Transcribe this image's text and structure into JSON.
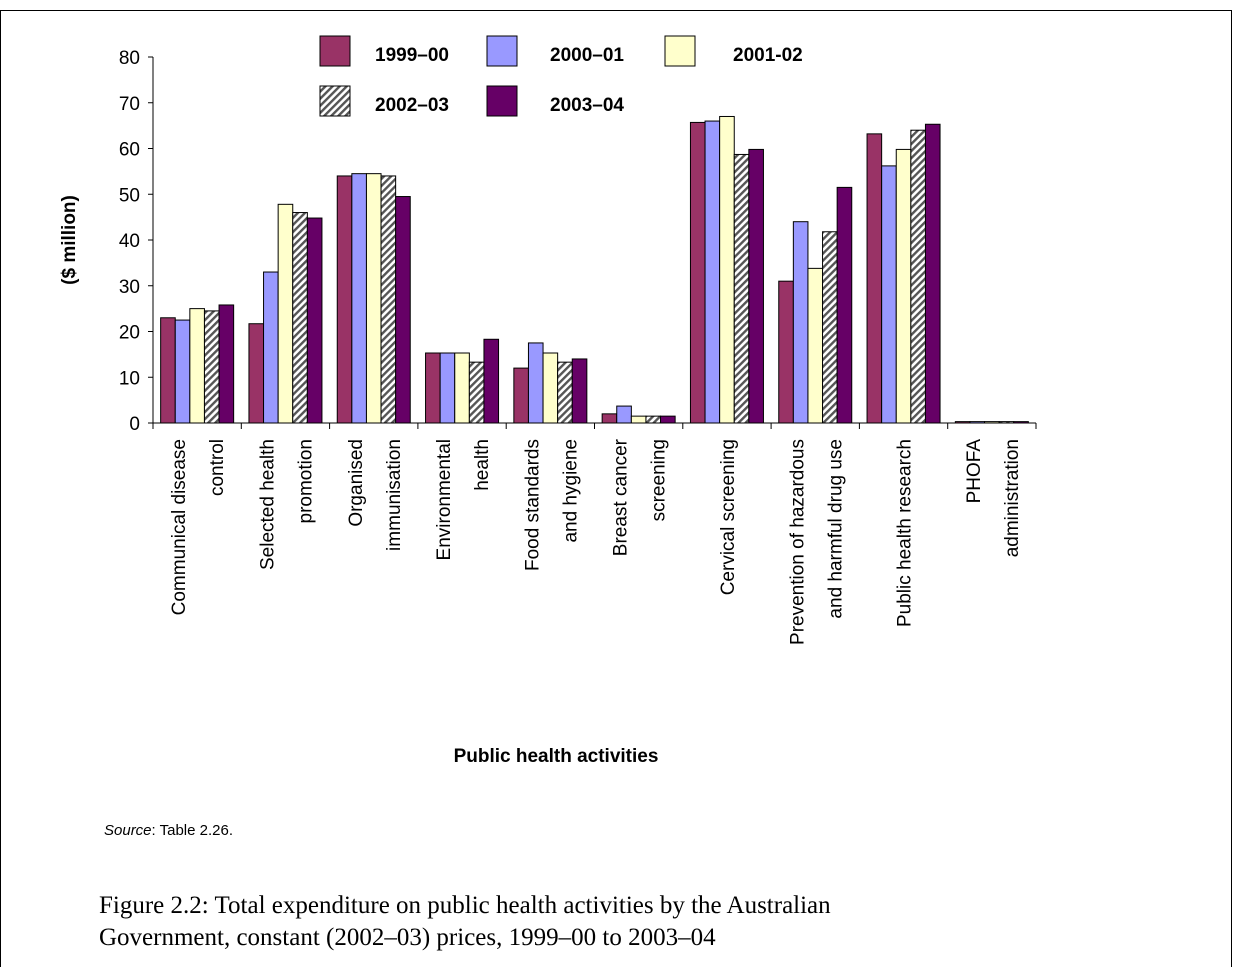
{
  "source": {
    "label": "Source",
    "text": ": Table 2.26."
  },
  "caption": {
    "line1": "Figure 2.2: Total expenditure on public health activities by the Australian",
    "line2": "Government, constant (2002–03) prices, 1999–00 to 2003–04"
  },
  "chart_data": {
    "type": "bar",
    "title": "",
    "xlabel": "Public health activities",
    "ylabel": "($ million)",
    "ylim": [
      0,
      80
    ],
    "yticks": [
      0,
      10,
      20,
      30,
      40,
      50,
      60,
      70,
      80
    ],
    "legend_position": "top",
    "categories": [
      [
        "Communical disease",
        "control"
      ],
      [
        "Selected health",
        "promotion"
      ],
      [
        "Organised",
        "immunisation"
      ],
      [
        "Environmental",
        "health"
      ],
      [
        "Food standards",
        "and hygiene"
      ],
      [
        "Breast cancer",
        "screening"
      ],
      [
        "Cervical screening"
      ],
      [
        "Prevention of hazardous",
        "and harmful drug use"
      ],
      [
        "Public health research"
      ],
      [
        "PHOFA",
        "administration"
      ]
    ],
    "series": [
      {
        "name": "1999–00",
        "color": "#993366",
        "pattern": "solid",
        "values": [
          23,
          21.7,
          54,
          15.3,
          12,
          2,
          65.7,
          31,
          63.2,
          0.3
        ]
      },
      {
        "name": "2000–01",
        "color": "#9999ff",
        "pattern": "solid",
        "values": [
          22.5,
          33,
          54.5,
          15.3,
          17.5,
          3.7,
          66,
          44,
          56.2,
          0.3
        ]
      },
      {
        "name": "2001-02",
        "color": "#ffffcc",
        "pattern": "solid",
        "values": [
          25,
          47.8,
          54.5,
          15.3,
          15.3,
          1.5,
          67,
          33.8,
          59.8,
          0.3
        ]
      },
      {
        "name": "2002–03",
        "color": "#555555",
        "pattern": "hatch",
        "values": [
          24.5,
          46,
          54,
          13.3,
          13.3,
          1.5,
          58.7,
          41.8,
          64,
          0.3
        ]
      },
      {
        "name": "2003–04",
        "color": "#660066",
        "pattern": "solid",
        "values": [
          25.8,
          44.8,
          49.5,
          18.3,
          14,
          1.5,
          59.8,
          51.5,
          65.3,
          0.3
        ]
      }
    ]
  }
}
